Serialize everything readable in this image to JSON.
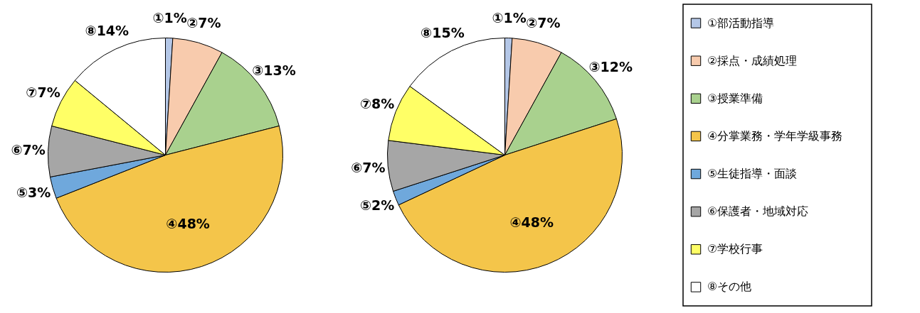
{
  "chart_data": [
    {
      "type": "pie",
      "categories": [
        "①部活動指導",
        "②採点・成績処理",
        "③授業準備",
        "④分掌業務・学年学級事務",
        "⑤生徒指導・面談",
        "⑥保護者・地域対応",
        "⑦学校行事",
        "⑧その他"
      ],
      "values": [
        1,
        7,
        13,
        48,
        3,
        7,
        7,
        14
      ],
      "value_labels": [
        "①1%",
        "②7%",
        "③13%",
        "④48%",
        "⑤3%",
        "⑥7%",
        "⑦7%",
        "⑧14%"
      ],
      "colors": [
        "#b4c7e7",
        "#f8cbad",
        "#a9d18e",
        "#f4c54a",
        "#6fa8dc",
        "#a6a6a6",
        "#ffff66",
        "#ffffff"
      ],
      "legend": "right"
    },
    {
      "type": "pie",
      "categories": [
        null,
        null,
        null,
        null,
        null,
        null,
        null,
        null
      ],
      "values": [
        1,
        7,
        12,
        48,
        2,
        7,
        8,
        15
      ],
      "value_labels": [
        "①1%",
        "②7%",
        "③12%",
        "④48%",
        "⑤2%",
        "⑥7%",
        "⑦8%",
        "⑧15%"
      ],
      "colors": [
        "#b4c7e7",
        "#f8cbad",
        "#a9d18e",
        "#f4c54a",
        "#6fa8dc",
        "#a6a6a6",
        "#ffff66",
        "#ffffff"
      ]
    }
  ]
}
